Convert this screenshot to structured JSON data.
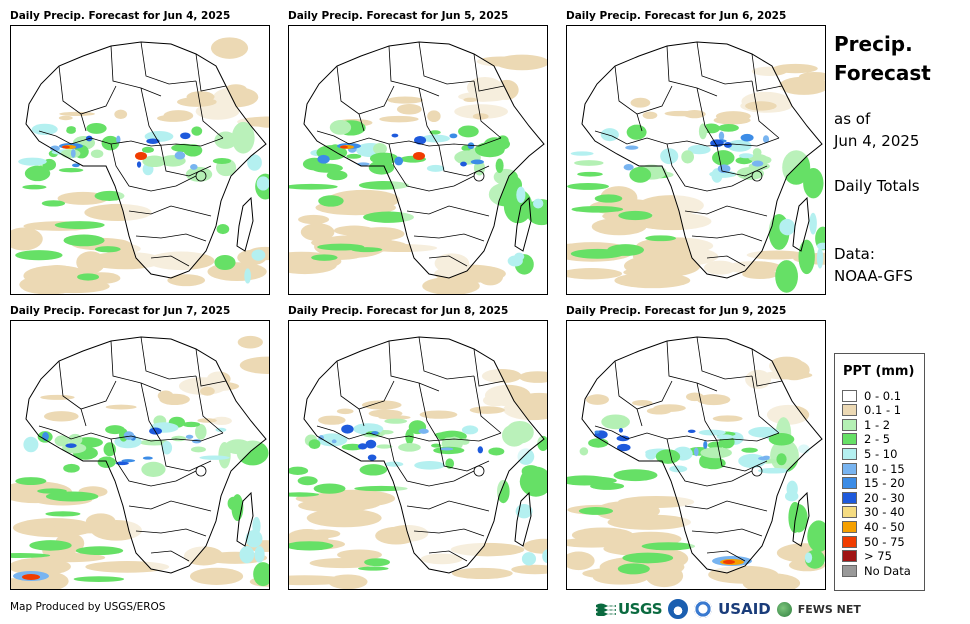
{
  "panels": [
    {
      "title": "Daily Precip. Forecast for Jun 4, 2025"
    },
    {
      "title": "Daily Precip. Forecast for Jun 5, 2025"
    },
    {
      "title": "Daily Precip. Forecast for Jun 6, 2025"
    },
    {
      "title": "Daily Precip. Forecast for Jun 7, 2025"
    },
    {
      "title": "Daily Precip. Forecast for Jun 8, 2025"
    },
    {
      "title": "Daily Precip. Forecast for Jun 9, 2025"
    }
  ],
  "side": {
    "title_line1": "Precip.",
    "title_line2": "Forecast",
    "asof_line1": "as of",
    "asof_line2": "Jun 4, 2025",
    "totals": "Daily Totals",
    "data_line1": "Data:",
    "data_line2": "NOAA-GFS"
  },
  "legend": {
    "title": "PPT (mm)",
    "items": [
      {
        "label": "0 - 0.1",
        "color": "#ffffff"
      },
      {
        "label": "0.1 - 1",
        "color": "#ecd9b4"
      },
      {
        "label": "1 - 2",
        "color": "#b4f0b4"
      },
      {
        "label": "2 - 5",
        "color": "#66e066"
      },
      {
        "label": "5 - 10",
        "color": "#b4f0f0"
      },
      {
        "label": "10 - 15",
        "color": "#78b4f0"
      },
      {
        "label": "15 - 20",
        "color": "#3c8ce6"
      },
      {
        "label": "20 - 30",
        "color": "#1e5adc"
      },
      {
        "label": "30 - 40",
        "color": "#f5dc82"
      },
      {
        "label": "40 - 50",
        "color": "#f5a000"
      },
      {
        "label": "50 - 75",
        "color": "#f03c00"
      },
      {
        "label": "> 75",
        "color": "#a01414"
      },
      {
        "label": "No Data",
        "color": "#999999"
      }
    ]
  },
  "footer": {
    "credit": "Map Produced by USGS/EROS",
    "logo_usgs": "USGS",
    "logo_usaid": "USAID",
    "logo_fews": "FEWS NET"
  }
}
